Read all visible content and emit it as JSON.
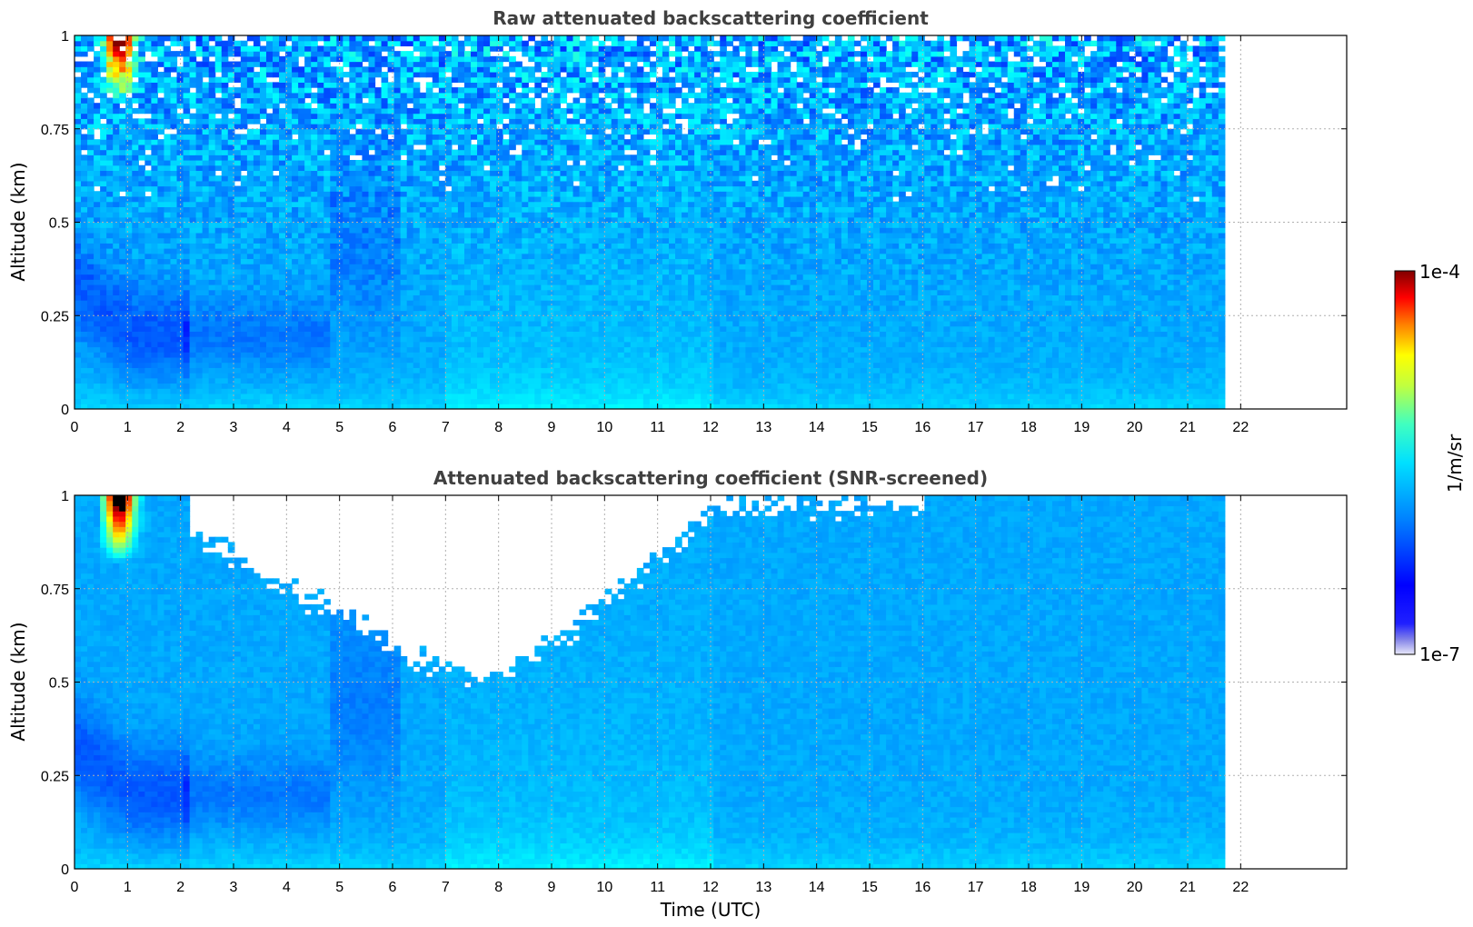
{
  "chart_data": [
    {
      "type": "heatmap",
      "title": "Raw attenuated backscattering coefficient",
      "ylabel": "Altitude (km)",
      "xlabel": "",
      "xlim": [
        0,
        24
      ],
      "ylim": [
        0,
        1
      ],
      "x_ticks": [
        "0",
        "1",
        "2",
        "3",
        "4",
        "5",
        "6",
        "7",
        "8",
        "9",
        "10",
        "11",
        "12",
        "13",
        "14",
        "15",
        "16",
        "17",
        "18",
        "19",
        "20",
        "21",
        "22"
      ],
      "y_ticks": [
        "0",
        "0.25",
        "0.5",
        "0.75",
        "1"
      ],
      "data_extent_hours": 21.7,
      "grid": true,
      "screening": false
    },
    {
      "type": "heatmap",
      "title": "Attenuated backscattering coefficient (SNR-screened)",
      "ylabel": "Altitude (km)",
      "xlabel": "Time (UTC)",
      "xlim": [
        0,
        24
      ],
      "ylim": [
        0,
        1
      ],
      "x_ticks": [
        "0",
        "1",
        "2",
        "3",
        "4",
        "5",
        "6",
        "7",
        "8",
        "9",
        "10",
        "11",
        "12",
        "13",
        "14",
        "15",
        "16",
        "17",
        "18",
        "19",
        "20",
        "21",
        "22"
      ],
      "y_ticks": [
        "0",
        "0.25",
        "0.5",
        "0.75",
        "1"
      ],
      "data_extent_hours": 21.7,
      "grid": true,
      "screening": true
    }
  ],
  "colorbar": {
    "label": "1/m/sr",
    "max_label": "1e-4",
    "min_label": "1e-7",
    "colormap": "jet"
  }
}
